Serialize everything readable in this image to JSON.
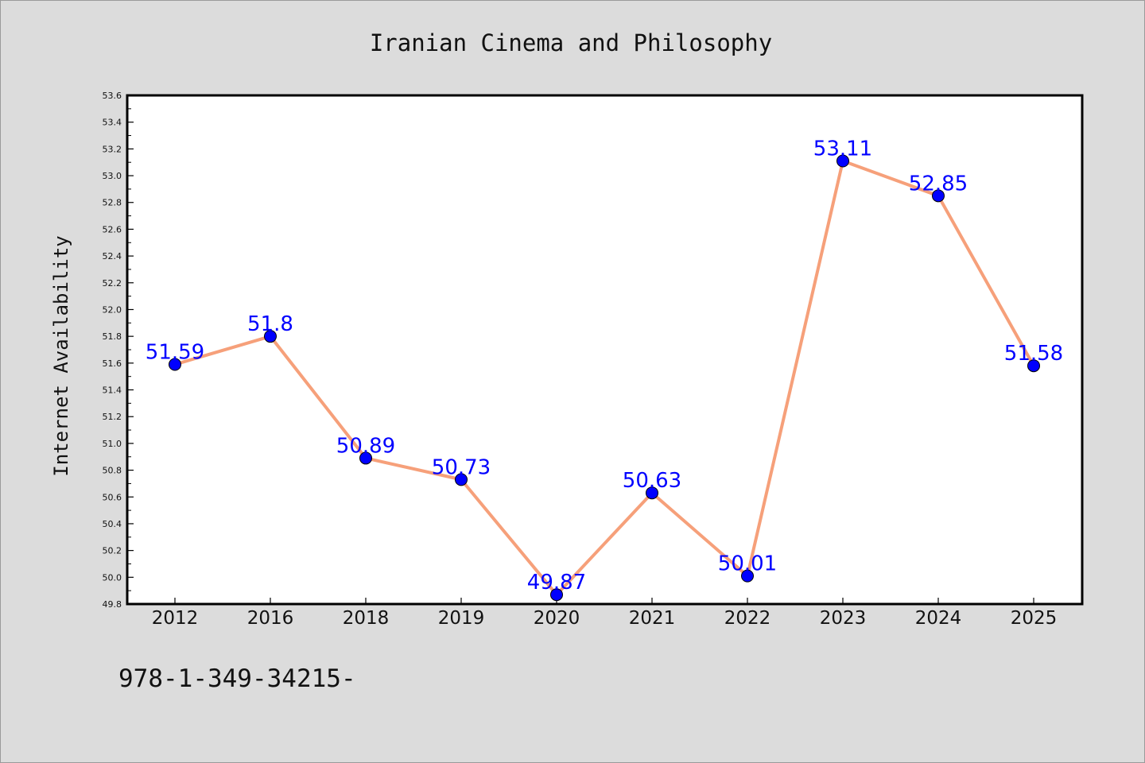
{
  "chart_data": {
    "type": "line",
    "title": "Iranian Cinema and Philosophy",
    "xlabel": "",
    "ylabel": "Internet Availability",
    "categories": [
      "2012",
      "2016",
      "2018",
      "2019",
      "2020",
      "2021",
      "2022",
      "2023",
      "2024",
      "2025"
    ],
    "series": [
      {
        "values": [
          51.59,
          51.8,
          50.89,
          50.73,
          49.87,
          50.63,
          50.01,
          53.11,
          52.85,
          51.58
        ],
        "line_color": "#f6a07a",
        "marker_color": "#0000ff",
        "label_color": "#0000ff"
      }
    ],
    "data_labels": [
      "51.59",
      "51.8",
      "50.89",
      "50.73",
      "49.87",
      "50.63",
      "50.01",
      "53.11",
      "52.85",
      "51.58"
    ],
    "ylim": [
      49.8,
      53.6
    ],
    "yticks": [
      "49.8",
      "50.0",
      "50.2",
      "50.4",
      "50.6",
      "50.8",
      "51.0",
      "51.2",
      "51.4",
      "51.6",
      "51.8",
      "52.0",
      "52.2",
      "52.4",
      "52.6",
      "52.8",
      "53.0",
      "53.2",
      "53.4",
      "53.6"
    ],
    "grid": false,
    "legend": "none"
  },
  "footer": {
    "text": "978-1-349-34215-"
  }
}
